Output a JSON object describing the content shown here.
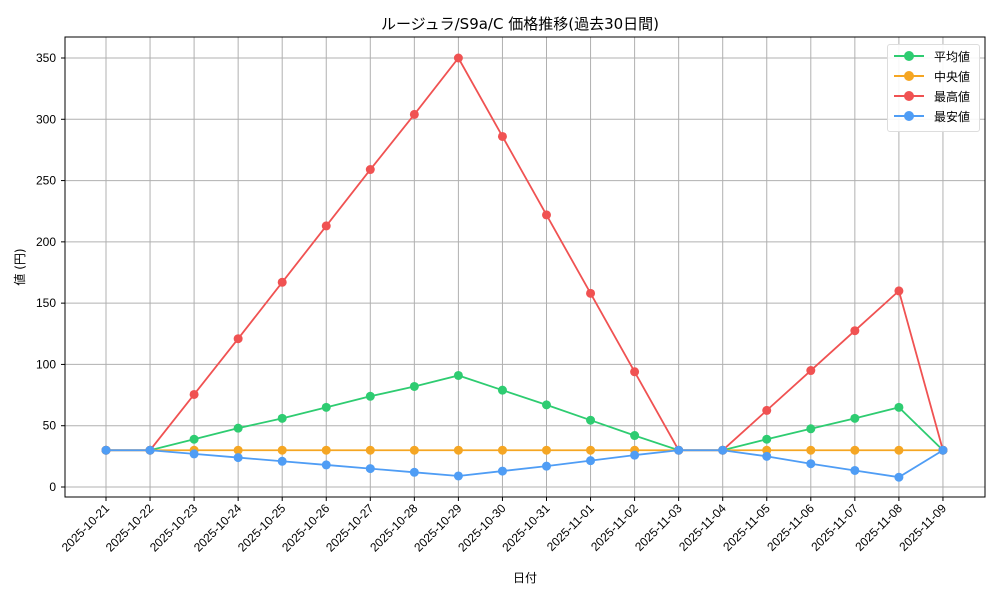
{
  "chart_data": {
    "type": "line",
    "title": "ルージュラ/S9a/C 価格推移(過去30日間)",
    "xlabel": "日付",
    "ylabel": "値 (円)",
    "ylim": [
      -8,
      368
    ],
    "yticks": [
      0,
      50,
      100,
      150,
      200,
      250,
      300,
      350
    ],
    "grid": true,
    "legend_position": "upper right",
    "categories": [
      "2025-10-21",
      "2025-10-22",
      "2025-10-23",
      "2025-10-24",
      "2025-10-25",
      "2025-10-26",
      "2025-10-27",
      "2025-10-28",
      "2025-10-29",
      "2025-10-30",
      "2025-10-31",
      "2025-11-01",
      "2025-11-02",
      "2025-11-03",
      "2025-11-04",
      "2025-11-05",
      "2025-11-06",
      "2025-11-07",
      "2025-11-08",
      "2025-11-09"
    ],
    "series": [
      {
        "name": "平均値",
        "color": "#2ecc71",
        "values": [
          30,
          30,
          39,
          48,
          56,
          65,
          74,
          82,
          91,
          79,
          67,
          54.5,
          42,
          30,
          30,
          39,
          47.5,
          56,
          65,
          30
        ]
      },
      {
        "name": "中央値",
        "color": "#f5a623",
        "values": [
          30,
          30,
          30,
          30,
          30,
          30,
          30,
          30,
          30,
          30,
          30,
          30,
          30,
          30,
          30,
          30,
          30,
          30,
          30,
          30
        ]
      },
      {
        "name": "最高値",
        "color": "#f05252",
        "values": [
          30,
          30,
          75.5,
          121,
          167,
          213,
          259,
          304,
          350,
          286,
          222,
          158,
          94,
          30,
          30,
          62.5,
          95,
          127.5,
          160,
          30
        ]
      },
      {
        "name": "最安値",
        "color": "#4f9df5",
        "values": [
          30,
          30,
          27,
          24,
          21,
          18,
          15,
          12,
          9,
          13,
          17,
          21.5,
          26,
          30,
          30,
          25,
          19,
          13.5,
          8,
          30
        ]
      }
    ]
  }
}
